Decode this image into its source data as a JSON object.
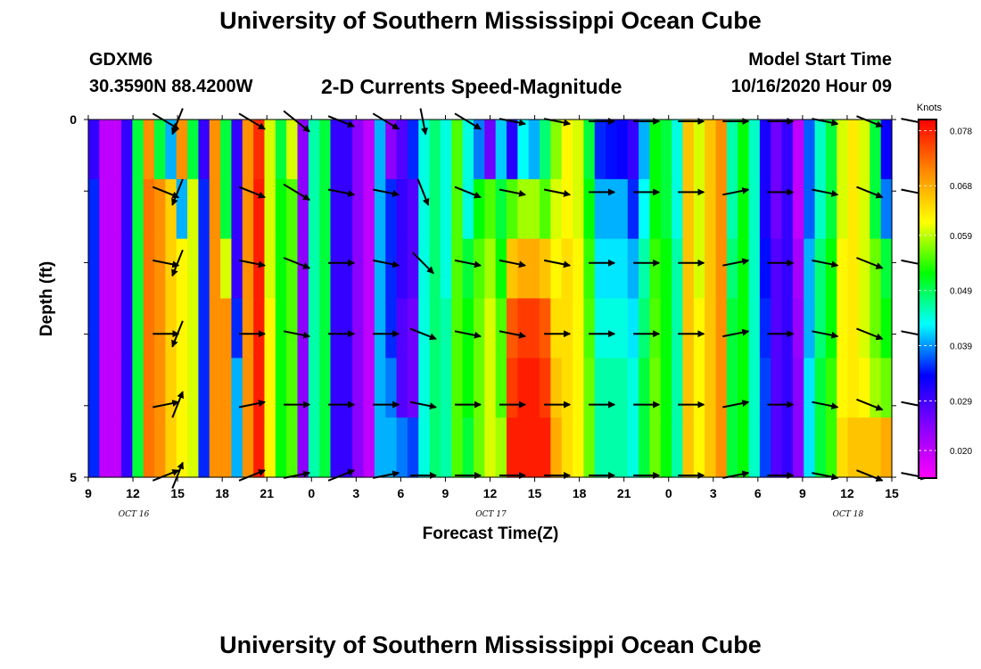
{
  "header": {
    "title_top": "University of Southern Mississippi Ocean Cube",
    "title_bottom": "University of Southern Mississippi Ocean Cube",
    "station_name": "GDXM6",
    "station_coords": "30.3590N 88.4200W",
    "plot_title": "2-D Currents Speed-Magnitude",
    "model_label": "Model Start Time",
    "model_time": "10/16/2020 Hour 09"
  },
  "colors": {
    "scale": [
      "#ff00ff",
      "#8800ff",
      "#0000ff",
      "#00ffff",
      "#00ff00",
      "#ffff00",
      "#ff8800",
      "#ff0000"
    ],
    "arrow": "#000000",
    "axis": "#000000"
  },
  "chart_data": {
    "type": "heatmap",
    "xlabel": "Forecast Time(Z)",
    "ylabel": "Depth (ft)",
    "x_ticks": [
      "9",
      "12",
      "15",
      "18",
      "21",
      "0",
      "3",
      "6",
      "9",
      "12",
      "15",
      "18",
      "21",
      "0",
      "3",
      "6",
      "9",
      "12",
      "15"
    ],
    "y_ticks": [
      "0",
      "5"
    ],
    "date_labels": [
      "OCT 16",
      "OCT 17",
      "OCT 18"
    ],
    "colorbar": {
      "unit": "Knots",
      "ticks": [
        "0.078",
        "0.068",
        "0.059",
        "0.049",
        "0.039",
        "0.029",
        "0.020"
      ],
      "range": [
        0.015,
        0.08
      ]
    },
    "series": [
      {
        "name": "depth-0",
        "values": [
          0.03,
          0.02,
          0.02,
          0.03,
          0.05,
          0.07,
          0.05,
          0.04,
          0.07,
          0.05,
          0.03,
          0.07,
          0.05,
          0.03,
          0.07,
          0.077,
          0.06,
          0.05,
          0.06,
          0.024,
          0.046,
          0.05,
          0.03,
          0.03,
          0.024,
          0.02,
          0.04,
          0.024,
          0.028,
          0.035,
          0.044,
          0.048,
          0.044,
          0.055,
          0.044,
          0.038,
          0.026,
          0.041,
          0.031,
          0.043,
          0.04,
          0.048,
          0.057,
          0.062,
          0.06,
          0.05,
          0.035,
          0.034,
          0.033,
          0.03,
          0.04,
          0.052,
          0.05,
          0.044,
          0.066,
          0.06,
          0.066,
          0.07,
          0.046,
          0.052,
          0.045,
          0.032,
          0.026,
          0.03,
          0.02,
          0.037,
          0.045,
          0.05,
          0.06,
          0.063,
          0.06,
          0.05,
          0.033
        ]
      },
      {
        "name": "depth-1",
        "values": [
          0.035,
          0.02,
          0.02,
          0.03,
          0.05,
          0.072,
          0.07,
          0.065,
          0.04,
          0.06,
          0.035,
          0.07,
          0.05,
          0.03,
          0.07,
          0.078,
          0.06,
          0.052,
          0.055,
          0.024,
          0.046,
          0.05,
          0.03,
          0.03,
          0.024,
          0.02,
          0.04,
          0.035,
          0.03,
          0.028,
          0.044,
          0.048,
          0.044,
          0.055,
          0.044,
          0.052,
          0.055,
          0.05,
          0.055,
          0.058,
          0.058,
          0.055,
          0.06,
          0.062,
          0.06,
          0.052,
          0.04,
          0.04,
          0.04,
          0.035,
          0.043,
          0.052,
          0.05,
          0.044,
          0.066,
          0.06,
          0.066,
          0.07,
          0.046,
          0.052,
          0.045,
          0.032,
          0.026,
          0.03,
          0.02,
          0.037,
          0.045,
          0.05,
          0.06,
          0.063,
          0.06,
          0.05,
          0.038
        ]
      },
      {
        "name": "depth-2",
        "values": [
          0.035,
          0.02,
          0.02,
          0.03,
          0.05,
          0.072,
          0.07,
          0.065,
          0.062,
          0.06,
          0.035,
          0.07,
          0.06,
          0.03,
          0.07,
          0.078,
          0.06,
          0.052,
          0.055,
          0.024,
          0.046,
          0.05,
          0.03,
          0.03,
          0.024,
          0.02,
          0.04,
          0.035,
          0.03,
          0.028,
          0.044,
          0.048,
          0.044,
          0.055,
          0.05,
          0.055,
          0.058,
          0.052,
          0.066,
          0.068,
          0.068,
          0.066,
          0.062,
          0.064,
          0.062,
          0.054,
          0.042,
          0.042,
          0.042,
          0.04,
          0.046,
          0.054,
          0.052,
          0.046,
          0.066,
          0.06,
          0.066,
          0.07,
          0.048,
          0.052,
          0.045,
          0.034,
          0.028,
          0.03,
          0.022,
          0.04,
          0.048,
          0.052,
          0.062,
          0.063,
          0.06,
          0.056,
          0.05
        ]
      },
      {
        "name": "depth-3",
        "values": [
          0.035,
          0.02,
          0.02,
          0.03,
          0.05,
          0.072,
          0.07,
          0.065,
          0.062,
          0.06,
          0.035,
          0.07,
          0.07,
          0.035,
          0.07,
          0.078,
          0.062,
          0.052,
          0.055,
          0.024,
          0.046,
          0.05,
          0.03,
          0.03,
          0.024,
          0.02,
          0.04,
          0.035,
          0.028,
          0.026,
          0.044,
          0.048,
          0.046,
          0.055,
          0.052,
          0.056,
          0.06,
          0.055,
          0.074,
          0.076,
          0.076,
          0.074,
          0.064,
          0.064,
          0.062,
          0.055,
          0.044,
          0.044,
          0.044,
          0.042,
          0.048,
          0.055,
          0.052,
          0.046,
          0.066,
          0.062,
          0.066,
          0.07,
          0.05,
          0.052,
          0.045,
          0.035,
          0.028,
          0.03,
          0.023,
          0.04,
          0.048,
          0.052,
          0.062,
          0.063,
          0.06,
          0.056,
          0.052
        ]
      },
      {
        "name": "depth-4",
        "values": [
          0.035,
          0.02,
          0.02,
          0.03,
          0.05,
          0.072,
          0.07,
          0.065,
          0.062,
          0.06,
          0.035,
          0.07,
          0.07,
          0.04,
          0.07,
          0.078,
          0.062,
          0.052,
          0.055,
          0.024,
          0.046,
          0.05,
          0.03,
          0.03,
          0.024,
          0.02,
          0.04,
          0.038,
          0.028,
          0.026,
          0.044,
          0.048,
          0.046,
          0.055,
          0.052,
          0.056,
          0.06,
          0.055,
          0.076,
          0.078,
          0.078,
          0.076,
          0.066,
          0.064,
          0.062,
          0.056,
          0.046,
          0.046,
          0.046,
          0.044,
          0.05,
          0.056,
          0.052,
          0.046,
          0.066,
          0.062,
          0.066,
          0.07,
          0.05,
          0.052,
          0.045,
          0.036,
          0.028,
          0.03,
          0.024,
          0.042,
          0.05,
          0.054,
          0.062,
          0.063,
          0.062,
          0.058,
          0.056
        ]
      },
      {
        "name": "depth-5",
        "values": [
          0.035,
          0.02,
          0.02,
          0.03,
          0.05,
          0.072,
          0.07,
          0.065,
          0.062,
          0.06,
          0.035,
          0.07,
          0.07,
          0.04,
          0.07,
          0.078,
          0.062,
          0.052,
          0.055,
          0.024,
          0.046,
          0.05,
          0.03,
          0.03,
          0.024,
          0.02,
          0.04,
          0.04,
          0.038,
          0.036,
          0.044,
          0.048,
          0.046,
          0.055,
          0.05,
          0.056,
          0.06,
          0.058,
          0.078,
          0.078,
          0.078,
          0.078,
          0.068,
          0.064,
          0.062,
          0.056,
          0.046,
          0.046,
          0.046,
          0.044,
          0.05,
          0.056,
          0.052,
          0.046,
          0.066,
          0.062,
          0.066,
          0.07,
          0.05,
          0.052,
          0.045,
          0.036,
          0.028,
          0.03,
          0.024,
          0.042,
          0.05,
          0.054,
          0.064,
          0.066,
          0.066,
          0.066,
          0.068
        ]
      }
    ],
    "arrows": [
      {
        "t": 14.2,
        "rows": [
          [
            0.05,
            -0.03
          ],
          [
            0.05,
            -0.02
          ],
          [
            0.05,
            -0.01
          ],
          [
            0.05,
            0.0
          ],
          [
            0.05,
            0.01
          ],
          [
            0.05,
            0.02
          ]
        ]
      },
      {
        "t": 15.0,
        "rows": [
          [
            -0.02,
            -0.05
          ],
          [
            -0.02,
            -0.05
          ],
          [
            -0.02,
            -0.05
          ],
          [
            -0.02,
            -0.05
          ],
          [
            0.02,
            0.05
          ],
          [
            0.02,
            0.05
          ]
        ]
      },
      {
        "t": 20.0,
        "rows": [
          [
            0.05,
            -0.03
          ],
          [
            0.05,
            -0.02
          ],
          [
            0.05,
            -0.01
          ],
          [
            0.05,
            0.0
          ],
          [
            0.05,
            0.01
          ],
          [
            0.05,
            0.02
          ]
        ]
      },
      {
        "t": 23.0,
        "rows": [
          [
            0.05,
            -0.04
          ],
          [
            0.05,
            -0.03
          ],
          [
            0.05,
            -0.02
          ],
          [
            0.05,
            -0.01
          ],
          [
            0.05,
            0.0
          ],
          [
            0.05,
            0.01
          ]
        ]
      },
      {
        "t": 26.0,
        "rows": [
          [
            0.05,
            -0.02
          ],
          [
            0.05,
            -0.01
          ],
          [
            0.05,
            0.0
          ],
          [
            0.05,
            0.0
          ],
          [
            0.05,
            0.0
          ],
          [
            0.05,
            0.02
          ]
        ]
      },
      {
        "t": 29.0,
        "rows": [
          [
            0.05,
            -0.03
          ],
          [
            0.05,
            -0.01
          ],
          [
            0.05,
            -0.01
          ],
          [
            0.05,
            0.0
          ],
          [
            0.05,
            0.0
          ],
          [
            0.05,
            0.01
          ]
        ]
      },
      {
        "t": 31.5,
        "rows": [
          [
            0.01,
            -0.05
          ],
          [
            0.02,
            -0.05
          ],
          [
            0.04,
            -0.04
          ],
          [
            0.05,
            -0.02
          ],
          [
            0.05,
            -0.01
          ],
          [
            0.05,
            0.0
          ]
        ]
      },
      {
        "t": 34.5,
        "rows": [
          [
            0.05,
            -0.03
          ],
          [
            0.05,
            -0.02
          ],
          [
            0.05,
            -0.01
          ],
          [
            0.05,
            -0.01
          ],
          [
            0.05,
            0.0
          ],
          [
            0.05,
            0.0
          ]
        ]
      },
      {
        "t": 37.5,
        "rows": [
          [
            0.05,
            -0.01
          ],
          [
            0.05,
            -0.01
          ],
          [
            0.05,
            -0.01
          ],
          [
            0.05,
            -0.01
          ],
          [
            0.05,
            0.0
          ],
          [
            0.05,
            0.0
          ]
        ]
      },
      {
        "t": 40.5,
        "rows": [
          [
            0.05,
            -0.01
          ],
          [
            0.05,
            -0.01
          ],
          [
            0.05,
            -0.01
          ],
          [
            0.05,
            0.0
          ],
          [
            0.05,
            0.0
          ],
          [
            0.05,
            0.0
          ]
        ]
      },
      {
        "t": 43.5,
        "rows": [
          [
            0.05,
            0.0
          ],
          [
            0.05,
            0.0
          ],
          [
            0.05,
            0.0
          ],
          [
            0.05,
            0.0
          ],
          [
            0.05,
            0.0
          ],
          [
            0.05,
            0.0
          ]
        ]
      },
      {
        "t": 46.5,
        "rows": [
          [
            0.05,
            0.0
          ],
          [
            0.05,
            0.0
          ],
          [
            0.05,
            0.0
          ],
          [
            0.05,
            0.0
          ],
          [
            0.05,
            0.0
          ],
          [
            0.05,
            0.0
          ]
        ]
      },
      {
        "t": 49.5,
        "rows": [
          [
            0.05,
            0.0
          ],
          [
            0.05,
            0.0
          ],
          [
            0.05,
            0.0
          ],
          [
            0.05,
            0.0
          ],
          [
            0.05,
            0.0
          ],
          [
            0.05,
            0.0
          ]
        ]
      },
      {
        "t": 52.5,
        "rows": [
          [
            0.05,
            0.0
          ],
          [
            0.05,
            0.01
          ],
          [
            0.05,
            0.01
          ],
          [
            0.05,
            0.01
          ],
          [
            0.05,
            0.01
          ],
          [
            0.05,
            0.01
          ]
        ]
      },
      {
        "t": 55.5,
        "rows": [
          [
            0.05,
            0.0
          ],
          [
            0.05,
            0.0
          ],
          [
            0.05,
            0.0
          ],
          [
            0.05,
            0.0
          ],
          [
            0.05,
            0.0
          ],
          [
            0.05,
            0.0
          ]
        ]
      },
      {
        "t": 58.5,
        "rows": [
          [
            0.05,
            -0.01
          ],
          [
            0.05,
            -0.01
          ],
          [
            0.05,
            -0.01
          ],
          [
            0.05,
            -0.01
          ],
          [
            0.05,
            -0.01
          ],
          [
            0.05,
            -0.01
          ]
        ]
      },
      {
        "t": 61.5,
        "rows": [
          [
            0.05,
            -0.02
          ],
          [
            0.05,
            -0.02
          ],
          [
            0.05,
            -0.02
          ],
          [
            0.05,
            -0.02
          ],
          [
            0.05,
            -0.02
          ],
          [
            0.05,
            -0.02
          ]
        ]
      },
      {
        "t": 64.5,
        "rows": [
          [
            0.05,
            -0.01
          ],
          [
            0.05,
            -0.01
          ],
          [
            0.05,
            -0.01
          ],
          [
            0.05,
            -0.01
          ],
          [
            0.05,
            -0.01
          ],
          [
            0.05,
            -0.01
          ]
        ]
      }
    ]
  }
}
